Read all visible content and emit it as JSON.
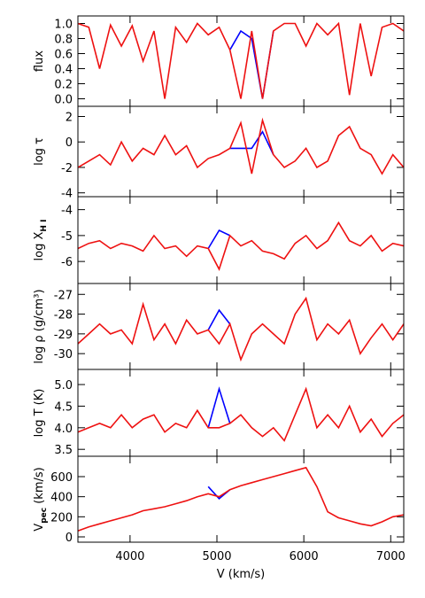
{
  "chart_data": [
    {
      "type": "line",
      "ylabel": [
        "flux"
      ],
      "ylabel_sub": [
        false
      ],
      "ylim": [
        -0.1,
        1.1
      ],
      "yticks": [
        {
          "value": 0,
          "label": "0.0"
        },
        {
          "value": 0.2,
          "label": "0.2"
        },
        {
          "value": 0.4,
          "label": "0.4"
        },
        {
          "value": 0.6,
          "label": "0.6"
        },
        {
          "value": 0.8,
          "label": "0.8"
        },
        {
          "value": 1,
          "label": "1.0"
        }
      ],
      "xlim": [
        3400,
        7150
      ],
      "x": [
        3400,
        3525,
        3650,
        3775,
        3900,
        4025,
        4150,
        4275,
        4400,
        4525,
        4650,
        4775,
        4900,
        5025,
        5150,
        5275,
        5400,
        5525,
        5650,
        5775,
        5900,
        6025,
        6150,
        6275,
        6400,
        6525,
        6650,
        6775,
        6900,
        7025,
        7150
      ],
      "series": [
        {
          "name": "blue",
          "color": "#0000ff",
          "values": [
            null,
            null,
            null,
            null,
            null,
            null,
            null,
            null,
            null,
            null,
            null,
            null,
            null,
            null,
            0.65,
            0.9,
            0.8,
            0.0,
            0.9,
            null,
            null,
            null,
            null,
            null,
            null,
            null,
            null,
            null,
            null,
            null,
            null
          ]
        },
        {
          "name": "red",
          "color": "#ee1111",
          "values": [
            1.0,
            0.95,
            0.4,
            0.98,
            0.7,
            0.97,
            0.5,
            0.9,
            0.0,
            0.95,
            0.75,
            1.0,
            0.85,
            0.95,
            0.65,
            0.0,
            0.9,
            0.0,
            0.9,
            1.0,
            1.0,
            0.7,
            1.0,
            0.85,
            1.0,
            0.05,
            1.0,
            0.3,
            0.95,
            1.0,
            0.9
          ]
        }
      ]
    },
    {
      "type": "line",
      "ylabel": [
        "log τ"
      ],
      "ylabel_sub": [
        false
      ],
      "ylim": [
        -4.3,
        2.8
      ],
      "yticks": [
        -4,
        -2,
        0,
        2
      ],
      "xlim": [
        3400,
        7150
      ],
      "x": [
        3400,
        3525,
        3650,
        3775,
        3900,
        4025,
        4150,
        4275,
        4400,
        4525,
        4650,
        4775,
        4900,
        5025,
        5150,
        5275,
        5400,
        5525,
        5650,
        5775,
        5900,
        6025,
        6150,
        6275,
        6400,
        6525,
        6650,
        6775,
        6900,
        7025,
        7150
      ],
      "series": [
        {
          "name": "blue",
          "color": "#0000ff",
          "values": [
            null,
            null,
            null,
            null,
            null,
            null,
            null,
            null,
            null,
            null,
            null,
            null,
            null,
            null,
            -0.5,
            -0.5,
            -0.5,
            0.8,
            -1,
            null,
            null,
            null,
            null,
            null,
            null,
            null,
            null,
            null,
            null,
            null,
            null
          ]
        },
        {
          "name": "red",
          "color": "#ee1111",
          "values": [
            -2,
            -1.5,
            -1,
            -1.8,
            0,
            -1.5,
            -0.5,
            -1,
            0.5,
            -1,
            -0.3,
            -2,
            -1.3,
            -1,
            -0.5,
            1.5,
            -2.5,
            1.7,
            -1,
            -2,
            -1.5,
            -0.5,
            -2,
            -1.5,
            0.5,
            1.2,
            -0.5,
            -1,
            -2.5,
            -1,
            -2
          ]
        }
      ]
    },
    {
      "type": "line",
      "ylabel": [
        "log X",
        "H I"
      ],
      "ylabel_sub": [
        false,
        true
      ],
      "ylim": [
        -6.85,
        -3.5
      ],
      "yticks": [
        -6,
        -5,
        -4
      ],
      "xlim": [
        3400,
        7150
      ],
      "x": [
        3400,
        3525,
        3650,
        3775,
        3900,
        4025,
        4150,
        4275,
        4400,
        4525,
        4650,
        4775,
        4900,
        5025,
        5150,
        5275,
        5400,
        5525,
        5650,
        5775,
        5900,
        6025,
        6150,
        6275,
        6400,
        6525,
        6650,
        6775,
        6900,
        7025,
        7150
      ],
      "series": [
        {
          "name": "blue",
          "color": "#0000ff",
          "values": [
            null,
            null,
            null,
            null,
            null,
            null,
            null,
            null,
            null,
            null,
            null,
            null,
            -5.5,
            -4.8,
            -5.0,
            null,
            null,
            null,
            null,
            null,
            null,
            null,
            null,
            null,
            null,
            null,
            null,
            null,
            null,
            null,
            null
          ]
        },
        {
          "name": "red",
          "color": "#ee1111",
          "values": [
            -5.5,
            -5.3,
            -5.2,
            -5.5,
            -5.3,
            -5.4,
            -5.6,
            -5.0,
            -5.5,
            -5.4,
            -5.8,
            -5.4,
            -5.5,
            -6.3,
            -5.0,
            -5.4,
            -5.2,
            -5.6,
            -5.7,
            -5.9,
            -5.3,
            -5.0,
            -5.5,
            -5.2,
            -4.5,
            -5.2,
            -5.4,
            -5.0,
            -5.6,
            -5.3,
            -5.4
          ]
        }
      ]
    },
    {
      "type": "line",
      "ylabel": [
        "log ρ (g/cm³)"
      ],
      "ylabel_sub": [
        false
      ],
      "ylim": [
        -30.8,
        -26.45
      ],
      "yticks": [
        -30,
        -29,
        -28,
        -27
      ],
      "xlim": [
        3400,
        7150
      ],
      "x": [
        3400,
        3525,
        3650,
        3775,
        3900,
        4025,
        4150,
        4275,
        4400,
        4525,
        4650,
        4775,
        4900,
        5025,
        5150,
        5275,
        5400,
        5525,
        5650,
        5775,
        5900,
        6025,
        6150,
        6275,
        6400,
        6525,
        6650,
        6775,
        6900,
        7025,
        7150
      ],
      "series": [
        {
          "name": "blue",
          "color": "#0000ff",
          "values": [
            null,
            null,
            null,
            null,
            null,
            null,
            null,
            null,
            null,
            null,
            null,
            null,
            -28.8,
            -27.8,
            -28.5,
            null,
            null,
            null,
            null,
            null,
            null,
            null,
            null,
            null,
            null,
            null,
            null,
            null,
            null,
            null,
            null
          ]
        },
        {
          "name": "red",
          "color": "#ee1111",
          "values": [
            -29.5,
            -29,
            -28.5,
            -29,
            -28.8,
            -29.5,
            -27.5,
            -29.3,
            -28.5,
            -29.5,
            -28.3,
            -29,
            -28.8,
            -29.5,
            -28.5,
            -30.3,
            -29,
            -28.5,
            -29,
            -29.5,
            -28,
            -27.2,
            -29.3,
            -28.5,
            -29,
            -28.3,
            -30,
            -29.2,
            -28.5,
            -29.3,
            -28.5
          ]
        }
      ]
    },
    {
      "type": "line",
      "ylabel": [
        "log T (K)"
      ],
      "ylabel_sub": [
        false
      ],
      "ylim": [
        3.34,
        5.35
      ],
      "yticks": [
        {
          "value": 3.5,
          "label": "3.5"
        },
        {
          "value": 4,
          "label": "4.0"
        },
        {
          "value": 4.5,
          "label": "4.5"
        },
        {
          "value": 5,
          "label": "5.0"
        }
      ],
      "xlim": [
        3400,
        7150
      ],
      "x": [
        3400,
        3525,
        3650,
        3775,
        3900,
        4025,
        4150,
        4275,
        4400,
        4525,
        4650,
        4775,
        4900,
        5025,
        5150,
        5275,
        5400,
        5525,
        5650,
        5775,
        5900,
        6025,
        6150,
        6275,
        6400,
        6525,
        6650,
        6775,
        6900,
        7025,
        7150
      ],
      "series": [
        {
          "name": "blue",
          "color": "#0000ff",
          "values": [
            null,
            null,
            null,
            null,
            null,
            null,
            null,
            null,
            null,
            null,
            null,
            null,
            4.0,
            4.9,
            4.1,
            null,
            null,
            null,
            null,
            null,
            null,
            null,
            null,
            null,
            null,
            null,
            null,
            null,
            null,
            null,
            null
          ]
        },
        {
          "name": "red",
          "color": "#ee1111",
          "values": [
            3.9,
            4.0,
            4.1,
            4.0,
            4.3,
            4.0,
            4.2,
            4.3,
            3.9,
            4.1,
            4.0,
            4.4,
            4.0,
            4.0,
            4.1,
            4.3,
            4.0,
            3.8,
            4.0,
            3.7,
            4.3,
            4.9,
            4.0,
            4.3,
            4.0,
            4.5,
            3.9,
            4.2,
            3.8,
            4.1,
            4.3
          ]
        }
      ]
    },
    {
      "type": "line",
      "ylabel": [
        "V",
        "pec",
        " (km/s)"
      ],
      "ylabel_sub": [
        false,
        true,
        false
      ],
      "ylim": [
        -53,
        803
      ],
      "yticks": [
        0,
        200,
        400,
        600
      ],
      "xlim": [
        3400,
        7150
      ],
      "xlabel": "V (km/s)",
      "xticks": [
        4000,
        5000,
        6000,
        7000
      ],
      "x": [
        3400,
        3525,
        3650,
        3775,
        3900,
        4025,
        4150,
        4275,
        4400,
        4525,
        4650,
        4775,
        4900,
        5025,
        5150,
        5275,
        5400,
        5525,
        5650,
        5775,
        5900,
        6025,
        6150,
        6275,
        6400,
        6525,
        6650,
        6775,
        6900,
        7025,
        7150
      ],
      "series": [
        {
          "name": "blue",
          "color": "#0000ff",
          "values": [
            null,
            null,
            null,
            null,
            null,
            null,
            null,
            null,
            null,
            null,
            null,
            null,
            500,
            380,
            470,
            null,
            null,
            null,
            null,
            null,
            null,
            null,
            null,
            null,
            null,
            null,
            null,
            null,
            null,
            null,
            null
          ]
        },
        {
          "name": "red",
          "color": "#ee1111",
          "values": [
            60,
            100,
            130,
            160,
            190,
            220,
            260,
            280,
            300,
            330,
            360,
            400,
            430,
            400,
            470,
            510,
            540,
            570,
            600,
            630,
            660,
            690,
            500,
            250,
            190,
            160,
            130,
            110,
            150,
            200,
            220
          ]
        }
      ]
    }
  ]
}
